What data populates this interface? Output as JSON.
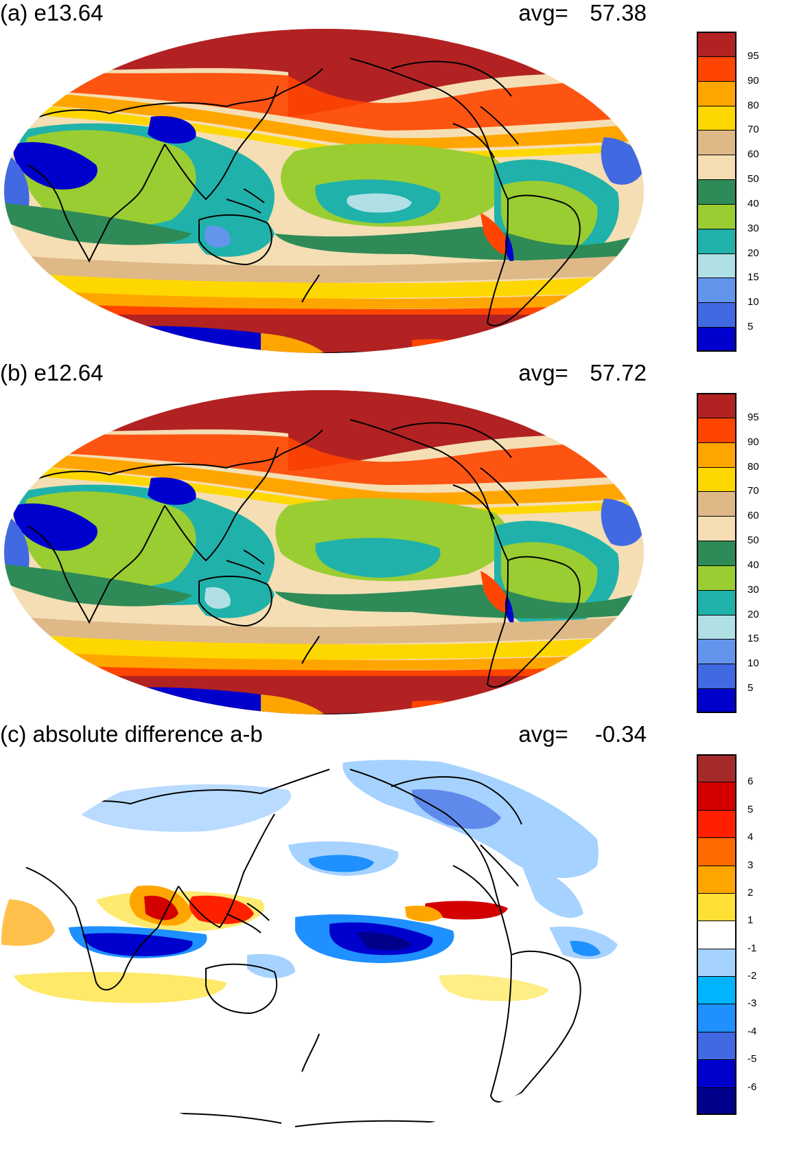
{
  "panels": [
    {
      "label": "(a) e13.64",
      "avg_label": "avg=",
      "avg_value": "57.38",
      "colorbar": {
        "ticks": [
          "95",
          "90",
          "80",
          "70",
          "60",
          "50",
          "40",
          "30",
          "20",
          "15",
          "10",
          "5"
        ],
        "colors": [
          "#b22222",
          "#ff4500",
          "#ffa500",
          "#ffd700",
          "#deb887",
          "#f5deb3",
          "#2e8b57",
          "#9acd32",
          "#20b2aa",
          "#b0e0e6",
          "#6495ed",
          "#4169e1",
          "#0000cd"
        ]
      }
    },
    {
      "label": "(b) e12.64",
      "avg_label": "avg=",
      "avg_value": "57.72",
      "colorbar": {
        "ticks": [
          "95",
          "90",
          "80",
          "70",
          "60",
          "50",
          "40",
          "30",
          "20",
          "15",
          "10",
          "5"
        ],
        "colors": [
          "#b22222",
          "#ff4500",
          "#ffa500",
          "#ffd700",
          "#deb887",
          "#f5deb3",
          "#2e8b57",
          "#9acd32",
          "#20b2aa",
          "#b0e0e6",
          "#6495ed",
          "#4169e1",
          "#0000cd"
        ]
      }
    },
    {
      "label": "(c) absolute difference a-b",
      "avg_label": "avg=",
      "avg_value": "-0.34",
      "colorbar": {
        "ticks": [
          "6",
          "5",
          "4",
          "3",
          "2",
          "1",
          "-1",
          "-2",
          "-3",
          "-4",
          "-5",
          "-6"
        ],
        "colors": [
          "#a52a2a",
          "#d40000",
          "#ff2000",
          "#ff6a00",
          "#ffa500",
          "#ffe135",
          "#ffffff",
          "#a6d2ff",
          "#00b4ff",
          "#1e90ff",
          "#4169e1",
          "#0000cd",
          "#00008b"
        ]
      }
    }
  ]
}
